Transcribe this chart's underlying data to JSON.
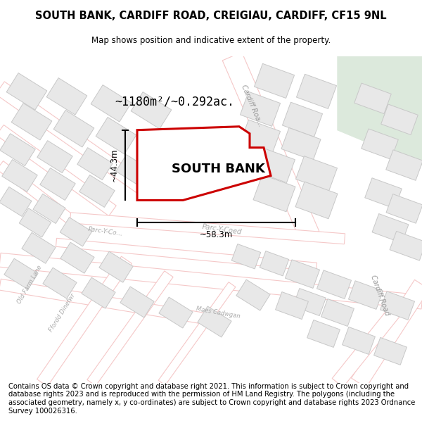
{
  "title_line1": "SOUTH BANK, CARDIFF ROAD, CREIGIAU, CARDIFF, CF15 9NL",
  "title_line2": "Map shows position and indicative extent of the property.",
  "footer_text": "Contains OS data © Crown copyright and database right 2021. This information is subject to Crown copyright and database rights 2023 and is reproduced with the permission of HM Land Registry. The polygons (including the associated geometry, namely x, y co-ordinates) are subject to Crown copyright and database rights 2023 Ordnance Survey 100026316.",
  "area_text": "~1180m²/~0.292ac.",
  "property_name": "SOUTH BANK",
  "dim1": "~44.3m",
  "dim2": "~58.3m",
  "map_bg": "#ffffff",
  "green_area": "#dce9dc",
  "property_fill": "#ffffff",
  "property_outline": "#cc0000",
  "road_color": "#f5c8c8",
  "road_outline": "#e8a8a8",
  "building_color": "#e8e8e8",
  "building_outline": "#c8c8c8",
  "title_fontsize": 10.5,
  "footer_fontsize": 7.2,
  "label_color": "#aaaaaa",
  "road_label_color": "#999999"
}
